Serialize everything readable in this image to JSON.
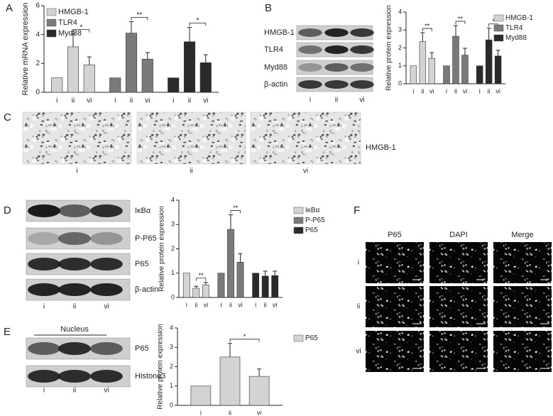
{
  "panel_letters": [
    "A",
    "B",
    "C",
    "D",
    "E",
    "F"
  ],
  "chart_data": [
    {
      "type": "bar",
      "ylabel": "Relative mRNA expression",
      "categories": [
        "i",
        "ii",
        "vi",
        "i",
        "ii",
        "vi",
        "i",
        "ii",
        "vi"
      ],
      "series": [
        {
          "name": "HMGB-1",
          "color": "#d3d3d3",
          "values": [
            1,
            3.15,
            1.9,
            null,
            null,
            null,
            null,
            null,
            null
          ],
          "errors": [
            null,
            0.9,
            0.55,
            null,
            null,
            null,
            null,
            null,
            null
          ]
        },
        {
          "name": "TLR4",
          "color": "#7a7a7a",
          "values": [
            null,
            null,
            null,
            1,
            4.1,
            2.3,
            null,
            null,
            null
          ],
          "errors": [
            null,
            null,
            null,
            null,
            0.8,
            0.45,
            null,
            null,
            null
          ]
        },
        {
          "name": "Myd88",
          "color": "#2a2a2a",
          "values": [
            null,
            null,
            null,
            null,
            null,
            null,
            1,
            3.5,
            2.05
          ],
          "errors": [
            null,
            null,
            null,
            null,
            null,
            null,
            null,
            1.0,
            0.55
          ]
        }
      ],
      "ylim": [
        0,
        6
      ],
      "yticks": [
        0,
        2,
        4,
        6
      ],
      "legend": "upper left",
      "annotations": [
        {
          "text": "*",
          "from": 1,
          "to": 2
        },
        {
          "text": "**",
          "from": 4,
          "to": 5
        },
        {
          "text": "*",
          "from": 7,
          "to": 8
        }
      ]
    },
    {
      "type": "bar",
      "ylabel": "Relative protein expression",
      "categories": [
        "i",
        "ii",
        "vi",
        "i",
        "ii",
        "vi",
        "i",
        "ii",
        "vi"
      ],
      "series": [
        {
          "name": "HMGB-1",
          "color": "#d3d3d3",
          "values": [
            1,
            2.35,
            1.42,
            null,
            null,
            null,
            null,
            null,
            null
          ],
          "errors": [
            null,
            0.5,
            0.32,
            null,
            null,
            null,
            null,
            null,
            null
          ]
        },
        {
          "name": "TLR4",
          "color": "#7a7a7a",
          "values": [
            null,
            null,
            null,
            1,
            2.65,
            1.6,
            null,
            null,
            null
          ],
          "errors": [
            null,
            null,
            null,
            null,
            0.6,
            0.38,
            null,
            null,
            null
          ]
        },
        {
          "name": "Myd88",
          "color": "#2a2a2a",
          "values": [
            null,
            null,
            null,
            null,
            null,
            null,
            1,
            2.45,
            1.55
          ],
          "errors": [
            null,
            null,
            null,
            null,
            null,
            null,
            null,
            0.65,
            0.32
          ]
        }
      ],
      "ylim": [
        0,
        4
      ],
      "yticks": [
        0,
        1,
        2,
        3,
        4
      ],
      "legend": "upper right",
      "annotations": [
        {
          "text": "**",
          "from": 1,
          "to": 2
        },
        {
          "text": "**",
          "from": 4,
          "to": 5
        },
        {
          "text": "*",
          "from": 7,
          "to": 8
        }
      ]
    },
    {
      "type": "bar",
      "ylabel": "Relative protein expression",
      "categories": [
        "i",
        "ii",
        "vi",
        "i",
        "ii",
        "vi",
        "i",
        "ii",
        "vi"
      ],
      "series": [
        {
          "name": "IκBα",
          "color": "#d3d3d3",
          "values": [
            1,
            0.38,
            0.52,
            null,
            null,
            null,
            null,
            null,
            null
          ],
          "errors": [
            null,
            0.08,
            0.1,
            null,
            null,
            null,
            null,
            null,
            null
          ]
        },
        {
          "name": "P-P65",
          "color": "#7a7a7a",
          "values": [
            null,
            null,
            null,
            1,
            2.8,
            1.45,
            null,
            null,
            null
          ],
          "errors": [
            null,
            null,
            null,
            null,
            0.6,
            0.35,
            null,
            null,
            null
          ]
        },
        {
          "name": "P65",
          "color": "#2a2a2a",
          "values": [
            null,
            null,
            null,
            null,
            null,
            null,
            1,
            0.88,
            0.9
          ],
          "errors": [
            null,
            null,
            null,
            null,
            null,
            null,
            null,
            0.2,
            0.18
          ]
        }
      ],
      "ylim": [
        0,
        4
      ],
      "yticks": [
        0,
        1,
        2,
        3,
        4
      ],
      "legend": "right",
      "annotations": [
        {
          "text": "**",
          "from": 1,
          "to": 2
        },
        {
          "text": "**",
          "from": 4,
          "to": 5
        }
      ]
    },
    {
      "type": "bar",
      "ylabel": "Relative protein expression",
      "categories": [
        "i",
        "ii",
        "vi"
      ],
      "series": [
        {
          "name": "P65",
          "color": "#d3d3d3",
          "values": [
            1,
            2.5,
            1.5
          ],
          "errors": [
            null,
            0.7,
            0.38
          ]
        }
      ],
      "ylim": [
        0,
        4
      ],
      "yticks": [
        0,
        1,
        2,
        3,
        4
      ],
      "legend": "right",
      "annotations": [
        {
          "text": "*",
          "from": 1,
          "to": 2
        }
      ]
    }
  ],
  "blots_B": {
    "labels": [
      "HMGB-1",
      "TLR4",
      "Myd88",
      "β-actin"
    ],
    "lanes": [
      "i",
      "ii",
      "vi"
    ]
  },
  "histology_C": {
    "captions": [
      "i",
      "ii",
      "vi"
    ],
    "label": "HMGB-1"
  },
  "blots_D": {
    "labels": [
      "IκBα",
      "P-P65",
      "P65",
      "β-actin"
    ],
    "lanes": [
      "i",
      "ii",
      "vi"
    ]
  },
  "blots_E": {
    "header": "Nucleus",
    "labels": [
      "P65",
      "Histone3"
    ],
    "lanes": [
      "i",
      "ii",
      "vi"
    ]
  },
  "panel_F": {
    "columns": [
      "P65",
      "DAPI",
      "Merge"
    ],
    "rows": [
      "i",
      "ii",
      "vi"
    ]
  }
}
